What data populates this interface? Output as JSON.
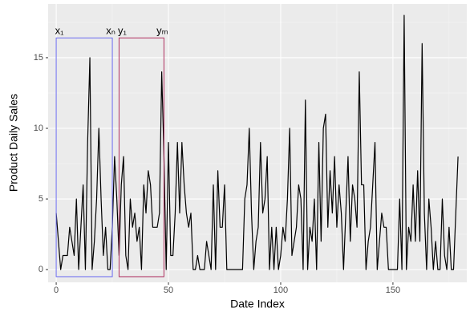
{
  "chart_data": {
    "type": "line",
    "x_label": "Date Index",
    "y_label": "Product Daily Sales",
    "x": [
      0,
      1,
      2,
      3,
      4,
      5,
      6,
      7,
      8,
      9,
      10,
      11,
      12,
      13,
      14,
      15,
      16,
      17,
      18,
      19,
      20,
      21,
      22,
      23,
      24,
      25,
      26,
      27,
      28,
      29,
      30,
      31,
      32,
      33,
      34,
      35,
      36,
      37,
      38,
      39,
      40,
      41,
      42,
      43,
      44,
      45,
      46,
      47,
      48,
      49,
      50,
      51,
      52,
      53,
      54,
      55,
      56,
      57,
      58,
      59,
      60,
      61,
      62,
      63,
      64,
      65,
      66,
      67,
      68,
      69,
      70,
      71,
      72,
      73,
      74,
      75,
      76,
      77,
      78,
      79,
      80,
      81,
      82,
      83,
      84,
      85,
      86,
      87,
      88,
      89,
      90,
      91,
      92,
      93,
      94,
      95,
      96,
      97,
      98,
      99,
      100,
      101,
      102,
      103,
      104,
      105,
      106,
      107,
      108,
      109,
      110,
      111,
      112,
      113,
      114,
      115,
      116,
      117,
      118,
      119,
      120,
      121,
      122,
      123,
      124,
      125,
      126,
      127,
      128,
      129,
      130,
      131,
      132,
      133,
      134,
      135,
      136,
      137,
      138,
      139,
      140,
      141,
      142,
      143,
      144,
      145,
      146,
      147,
      148,
      149,
      150,
      151,
      152,
      153,
      154,
      155,
      156,
      157,
      158,
      159,
      160,
      161,
      162,
      163,
      164,
      165,
      166,
      167,
      168,
      169,
      170,
      171,
      172,
      173,
      174,
      175,
      176,
      177,
      178,
      179
    ],
    "series": [
      {
        "color": "#000000",
        "values": [
          4,
          2,
          0,
          1,
          1,
          1,
          3,
          2,
          1,
          5,
          0,
          3,
          6,
          0,
          9,
          15,
          0,
          2,
          5,
          10,
          5,
          1,
          3,
          0,
          0,
          3,
          8,
          5,
          1,
          6,
          8,
          1,
          0,
          5,
          3,
          4,
          2,
          3,
          0,
          6,
          4,
          7,
          6,
          3,
          3,
          3,
          4,
          14,
          8,
          0,
          9,
          1,
          1,
          4,
          9,
          4,
          9,
          6,
          4,
          3,
          4,
          0,
          0,
          1,
          0,
          0,
          0,
          2,
          1,
          0,
          6,
          0,
          7,
          3,
          3,
          6,
          0,
          0,
          0,
          0,
          0,
          0,
          0,
          0,
          5,
          6,
          10,
          4,
          0,
          2,
          3,
          9,
          4,
          5,
          8,
          0,
          3,
          0,
          3,
          0,
          1,
          3,
          2,
          5,
          10,
          1,
          2,
          3,
          6,
          5,
          0,
          12,
          0,
          3,
          2,
          5,
          0,
          9,
          2,
          10,
          11,
          3,
          7,
          4,
          8,
          3,
          6,
          4,
          0,
          4,
          8,
          2,
          6,
          5,
          3,
          14,
          6,
          6,
          0,
          2,
          3,
          6,
          9,
          0,
          2,
          4,
          3,
          3,
          0,
          0,
          0,
          0,
          0,
          5,
          0,
          18,
          0,
          3,
          2,
          6,
          2,
          7,
          2,
          16,
          4,
          0,
          5,
          3,
          0,
          2,
          0,
          0,
          5,
          1,
          0,
          3,
          0,
          0,
          4,
          8
        ]
      }
    ],
    "xlim": [
      -3.6,
      182.9
    ],
    "ylim": [
      -0.9,
      18.8
    ],
    "xticks": [
      0,
      50,
      100,
      150
    ],
    "yticks": [
      0,
      5,
      10,
      15
    ],
    "minor_xticks": [
      25,
      75,
      125,
      175
    ],
    "minor_yticks": [
      2.5,
      7.5,
      12.5,
      17.5
    ],
    "grid": true,
    "boxes": [
      {
        "start_label": "x₁",
        "end_label": "xₙ",
        "xmin": 0,
        "xmax": 25,
        "ymin": -0.5,
        "ymax": 16.4,
        "color": "#6b6bf0"
      },
      {
        "start_label": "y₁",
        "end_label": "yₘ",
        "xmin": 28,
        "xmax": 48,
        "ymin": -0.5,
        "ymax": 16.4,
        "color": "#b03060"
      }
    ]
  }
}
